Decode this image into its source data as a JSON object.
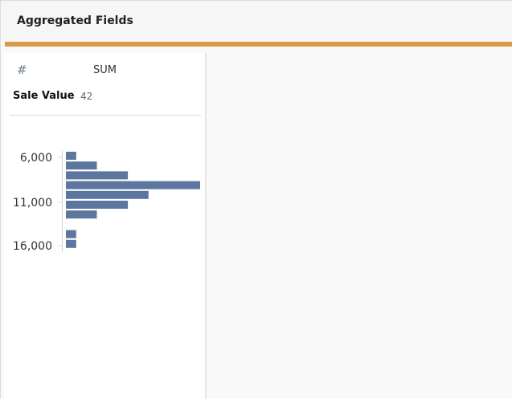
{
  "header": {
    "title": "Aggregated Fields"
  },
  "colors": {
    "accent": "#d99a49",
    "bar": "#5c76a0"
  },
  "field_card": {
    "type_icon": "number-icon",
    "type_symbol": "#",
    "aggregation": "SUM",
    "field_name": "Sale Value",
    "count": "42"
  },
  "chart_data": {
    "type": "bar",
    "orientation": "horizontal",
    "y_ticks": [
      "6,000",
      "11,000",
      "16,000"
    ],
    "bins": [
      {
        "bin_start": 5500,
        "count": 1
      },
      {
        "bin_start": 6500,
        "count": 3
      },
      {
        "bin_start": 7500,
        "count": 6
      },
      {
        "bin_start": 8500,
        "count": 13
      },
      {
        "bin_start": 9500,
        "count": 8
      },
      {
        "bin_start": 10500,
        "count": 6
      },
      {
        "bin_start": 11500,
        "count": 3
      },
      {
        "bin_start": 12500,
        "count": 0
      },
      {
        "bin_start": 13500,
        "count": 1
      },
      {
        "bin_start": 14500,
        "count": 1
      }
    ],
    "x_max": 13
  }
}
